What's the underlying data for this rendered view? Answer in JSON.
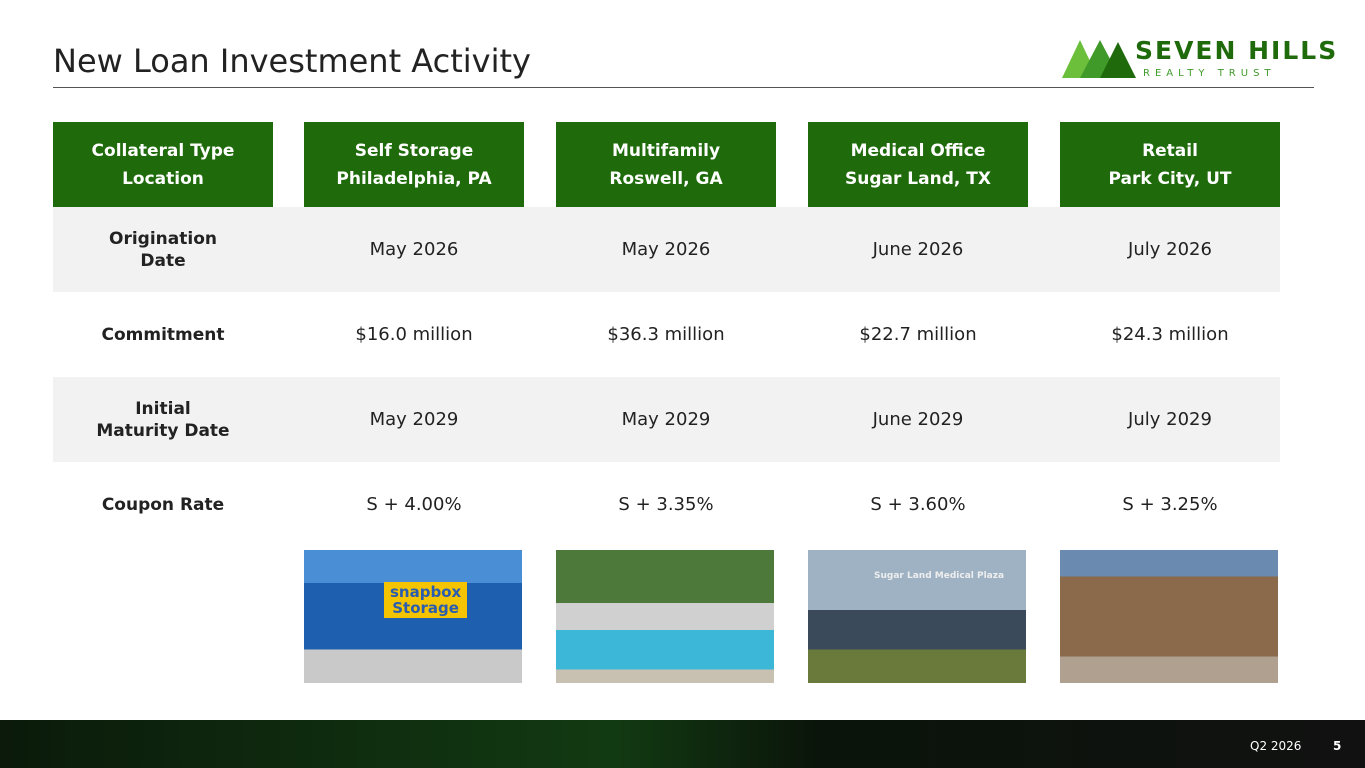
{
  "header": {
    "title": "New Loan Investment Activity",
    "logo": {
      "name": "SEVEN HILLS",
      "tagline": "REALTY TRUST"
    }
  },
  "table": {
    "columns": [
      [
        "Collateral Type",
        "Location"
      ],
      [
        "Self Storage",
        "Philadelphia, PA"
      ],
      [
        "Multifamily",
        "Roswell, GA"
      ],
      [
        "Medical Office",
        "Sugar Land, TX"
      ],
      [
        "Retail",
        "Park City, UT"
      ]
    ],
    "rows": [
      {
        "label": [
          "Origination",
          "Date"
        ],
        "cells": [
          "May 2026",
          "May 2026",
          "June 2026",
          "July 2026"
        ]
      },
      {
        "label": [
          "Commitment"
        ],
        "cells": [
          "$16.0 million",
          "$36.3 million",
          "$22.7 million",
          "$24.3 million"
        ]
      },
      {
        "label": [
          "Initial",
          "Maturity Date"
        ],
        "cells": [
          "May 2029",
          "May 2029",
          "June 2029",
          "July 2029"
        ]
      },
      {
        "label": [
          "Coupon Rate"
        ],
        "cells": [
          "S + 4.00%",
          "S + 3.35%",
          "S + 3.60%",
          "S + 3.25%"
        ]
      }
    ]
  },
  "photos": [
    {
      "sign": [
        "snapbox",
        "Storage"
      ]
    },
    {
      "sign": []
    },
    {
      "sign": [
        "Sugar Land Medical Plaza"
      ]
    },
    {
      "sign": []
    }
  ],
  "footer": {
    "period": "Q2 2026",
    "page": "5"
  }
}
